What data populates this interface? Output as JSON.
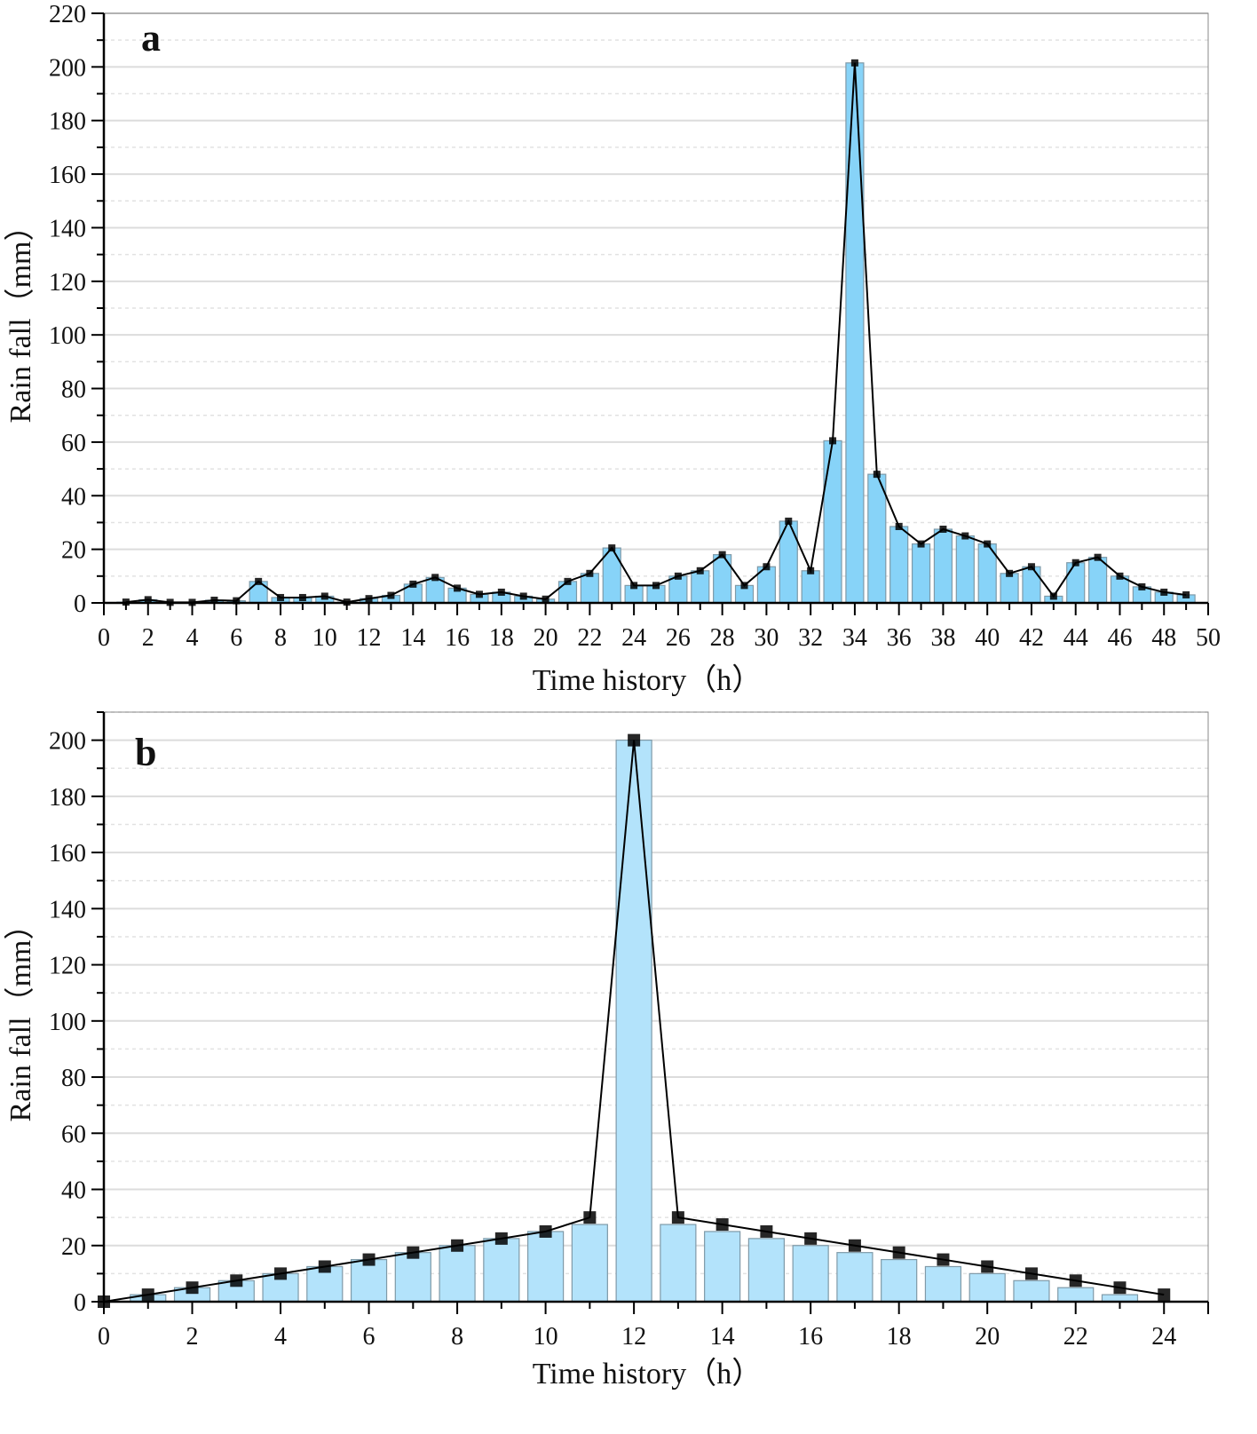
{
  "chart_data": [
    {
      "panel_label": "a",
      "type": "bar+line",
      "title": "",
      "xlabel": "Time history（h）",
      "ylabel": "Rain fall（mm）",
      "xlim": [
        0,
        50
      ],
      "ylim": [
        0,
        220
      ],
      "xticks": [
        0,
        2,
        4,
        6,
        8,
        10,
        12,
        14,
        16,
        18,
        20,
        22,
        24,
        26,
        28,
        30,
        32,
        34,
        36,
        38,
        40,
        42,
        44,
        46,
        48,
        50
      ],
      "yticks": [
        0,
        20,
        40,
        60,
        80,
        100,
        120,
        140,
        160,
        180,
        200,
        220
      ],
      "grid": "horizontal major solid, minor dashed",
      "x": [
        1,
        2,
        3,
        4,
        5,
        6,
        7,
        8,
        9,
        10,
        11,
        12,
        13,
        14,
        15,
        16,
        17,
        18,
        19,
        20,
        21,
        22,
        23,
        24,
        25,
        26,
        27,
        28,
        29,
        30,
        31,
        32,
        33,
        34,
        35,
        36,
        37,
        38,
        39,
        40,
        41,
        42,
        43,
        44,
        45,
        46,
        47,
        48,
        49
      ],
      "values": [
        0.3,
        1.2,
        0.2,
        0.2,
        1.0,
        0.8,
        8.0,
        2.0,
        2.0,
        2.5,
        0.3,
        1.6,
        2.8,
        7.0,
        9.5,
        5.5,
        3.2,
        4.0,
        2.5,
        1.4,
        8.0,
        11.0,
        20.5,
        6.5,
        6.5,
        10.0,
        12.0,
        18.0,
        6.5,
        13.5,
        30.5,
        12.0,
        60.5,
        201.5,
        48.0,
        28.5,
        22.0,
        27.5,
        25.0,
        22.0,
        11.0,
        13.5,
        2.5,
        15.0,
        17.0,
        10.0,
        6.0,
        4.0,
        3.0
      ],
      "bar_color": "#87d3f8",
      "line_color": "#000000"
    },
    {
      "panel_label": "b",
      "type": "bar+line",
      "title": "",
      "xlabel": "Time history（h）",
      "ylabel": "Rain fall（mm）",
      "xlim": [
        0,
        25
      ],
      "ylim": [
        0,
        210
      ],
      "xticks": [
        0,
        2,
        4,
        6,
        8,
        10,
        12,
        14,
        16,
        18,
        20,
        22,
        24
      ],
      "yticks": [
        0,
        20,
        40,
        60,
        80,
        100,
        120,
        140,
        160,
        180,
        200
      ],
      "grid": "horizontal major solid, minor dashed",
      "x": [
        0,
        1,
        2,
        3,
        4,
        5,
        6,
        7,
        8,
        9,
        10,
        11,
        12,
        13,
        14,
        15,
        16,
        17,
        18,
        19,
        20,
        21,
        22,
        23,
        24
      ],
      "values": [
        0,
        2.5,
        5,
        7.5,
        10,
        12.5,
        15,
        17.5,
        20,
        22.5,
        25,
        27.5,
        200,
        27.5,
        25,
        22.5,
        20,
        17.5,
        15,
        12.5,
        10,
        7.5,
        5,
        2.5,
        0
      ],
      "line_values": [
        0,
        2.5,
        5,
        7.5,
        10,
        12.5,
        15,
        17.5,
        20,
        22.5,
        25,
        30,
        200,
        30,
        27.5,
        25,
        22.5,
        20,
        17.5,
        15,
        12.5,
        10,
        7.5,
        5,
        2.5,
        0
      ],
      "bar_color": "#b3e3fb",
      "line_color": "#000000"
    }
  ],
  "panels": {
    "a": {
      "label": "a",
      "xlabel": "Time history（h）",
      "ylabel": "Rain fall（mm）"
    },
    "b": {
      "label": "b",
      "xlabel": "Time history（h）",
      "ylabel": "Rain fall（mm）"
    }
  }
}
